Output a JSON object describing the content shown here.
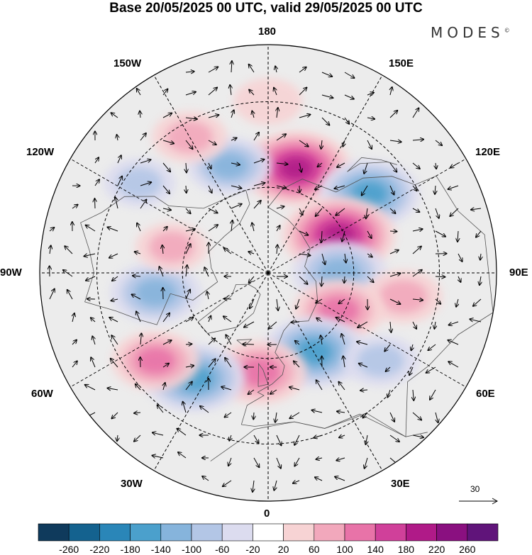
{
  "title": "Base 20/05/2025 00 UTC, valid 29/05/2025 00 UTC",
  "brand": "MODES",
  "brand_mark": "©",
  "longitude_labels": {
    "lon_180": "180",
    "lon_150W": "150W",
    "lon_150E": "150E",
    "lon_120W": "120W",
    "lon_120E": "120E",
    "lon_90W": "90W",
    "lon_90E": "90E",
    "lon_60W": "60W",
    "lon_60E": "60E",
    "lon_30W": "30W",
    "lon_30E": "30E",
    "lon_0": "0"
  },
  "reference_vector": {
    "value": "30"
  },
  "colorbar": {
    "colors": [
      "#0f3a5c",
      "#14628f",
      "#2a86b8",
      "#4ba0cc",
      "#86b4dc",
      "#b3c6e6",
      "#dcdcef",
      "#ffffff",
      "#f7d3d4",
      "#f2a8bc",
      "#e873a8",
      "#d0409a",
      "#b01a88",
      "#8a1080",
      "#60147a"
    ],
    "labels": [
      "-260",
      "-220",
      "-180",
      "-140",
      "-100",
      "-60",
      "-20",
      "20",
      "60",
      "100",
      "140",
      "180",
      "220",
      "260"
    ]
  },
  "anomalies": [
    {
      "name": "pos-east-siberia",
      "lon": 165,
      "lat": 52,
      "value": 180
    },
    {
      "name": "neg-okhotsk",
      "lon": 128,
      "lat": 45,
      "value": -150
    },
    {
      "name": "pos-siberia-mid",
      "lon": 118,
      "lat": 62,
      "value": 190
    },
    {
      "name": "neg-central-siberia",
      "lon": 90,
      "lat": 65,
      "value": -130
    },
    {
      "name": "pos-central-asia",
      "lon": 80,
      "lat": 42,
      "value": 80
    },
    {
      "name": "pos-west-siberia",
      "lon": 62,
      "lat": 62,
      "value": 120
    },
    {
      "name": "neg-europe",
      "lon": 30,
      "lat": 58,
      "value": -160
    },
    {
      "name": "neg-east-europe",
      "lon": 52,
      "lat": 40,
      "value": -70
    },
    {
      "name": "pos-north-atlantic",
      "lon": -5,
      "lat": 55,
      "value": 130
    },
    {
      "name": "neg-atlantic",
      "lon": -35,
      "lat": 45,
      "value": -150
    },
    {
      "name": "pos-west-atlantic",
      "lon": -52,
      "lat": 40,
      "value": 110
    },
    {
      "name": "neg-hudson",
      "lon": -80,
      "lat": 50,
      "value": -120
    },
    {
      "name": "pos-canada",
      "lon": -105,
      "lat": 55,
      "value": 60
    },
    {
      "name": "neg-pacific-east",
      "lon": -125,
      "lat": 35,
      "value": -60
    },
    {
      "name": "neg-gulf-alaska",
      "lon": -160,
      "lat": 50,
      "value": -100
    },
    {
      "name": "pos-pacific-mid",
      "lon": -150,
      "lat": 35,
      "value": 70
    },
    {
      "name": "pos-bering",
      "lon": 180,
      "lat": 30,
      "value": 50
    }
  ]
}
